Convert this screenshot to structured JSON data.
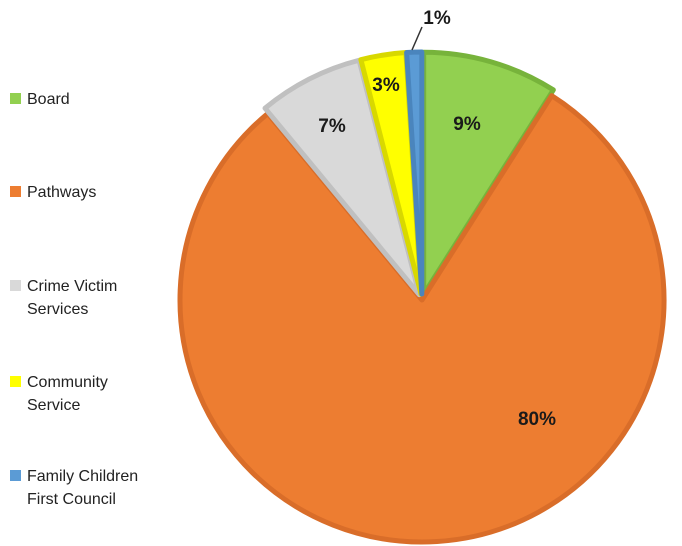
{
  "chart_data": {
    "type": "pie",
    "title": "",
    "categories": [
      "Board",
      "Pathways",
      "Crime Victim Services",
      "Community Service",
      "Family Children First Council"
    ],
    "values": [
      9,
      80,
      7,
      3,
      1
    ],
    "data_labels": [
      "9%",
      "80%",
      "7%",
      "3%",
      "1%"
    ],
    "colors": [
      "#92d050",
      "#ed7d31",
      "#d9d9d9",
      "#ffff00",
      "#5b9bd5"
    ],
    "edge_colors": [
      "#77b33b",
      "#d96d29",
      "#c0c0c0",
      "#d8d800",
      "#4a85bd"
    ],
    "legend_position": "left",
    "exploded": true
  },
  "legend": {
    "items": [
      {
        "label": "Board"
      },
      {
        "label": "Pathways"
      },
      {
        "label": "Crime Victim\nServices"
      },
      {
        "label": "Community\nService"
      },
      {
        "label": "Family Children\nFirst Council"
      }
    ]
  }
}
